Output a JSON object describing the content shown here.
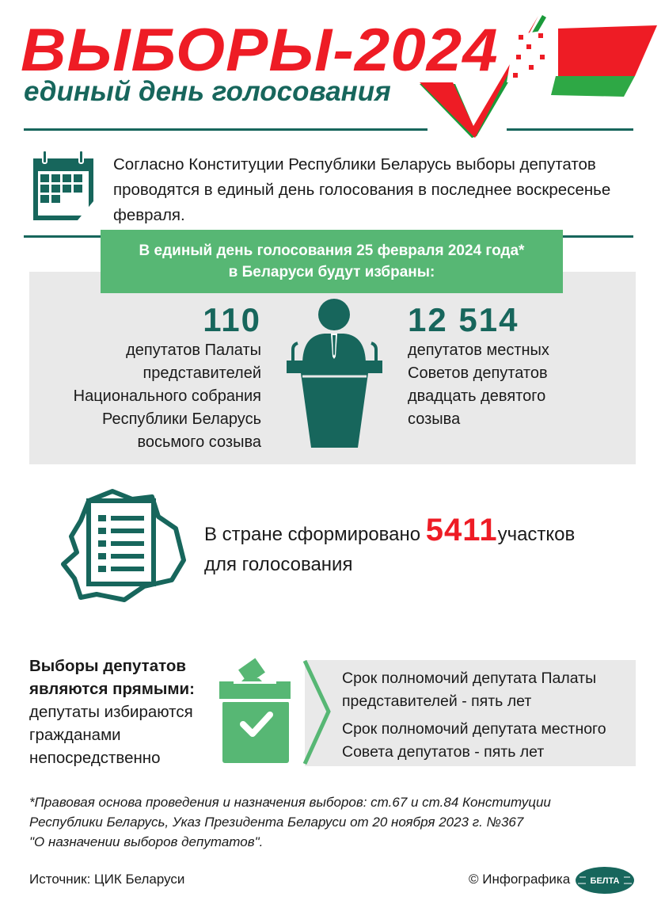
{
  "header": {
    "title": "ВЫБОРЫ-2024",
    "subtitle": "единый день голосования"
  },
  "intro": {
    "icon": "calendar-icon",
    "text": "Согласно Конституции Республики Беларусь выборы депутатов проводятся в единый день голосования в последнее воскресенье февраля."
  },
  "banner": {
    "line1": "В единый день голосования 25 февраля 2024 года*",
    "line2": "в Беларуси будут избраны:"
  },
  "elected": {
    "left": {
      "number": "110",
      "lines": [
        "депутатов Палаты",
        "представителей",
        "Национального собрания",
        "Республики Беларусь",
        "восьмого созыва"
      ]
    },
    "right": {
      "number": "12 514",
      "lines": [
        "депутатов местных",
        "Советов депутатов",
        "двадцать девятого",
        "созыва"
      ]
    },
    "icon": "speaker-podium-icon"
  },
  "stations": {
    "prefix": "В стране сформировано ",
    "number": "5411",
    "suffix": "участков",
    "line2": "для голосования",
    "icon": "map-document-icon"
  },
  "direct": {
    "bold1": "Выборы депутатов",
    "bold2": "являются прямыми:",
    "lines": [
      "депутаты избираются",
      "гражданами",
      "непосредственно"
    ],
    "icon": "ballot-box-icon"
  },
  "terms": [
    {
      "line1": "Срок полномочий депутата Палаты",
      "line2": "представителей - пять лет"
    },
    {
      "line1": "Срок полномочий депутата местного",
      "line2": "Совета депутатов - пять лет"
    }
  ],
  "footnote": {
    "lines": [
      "*Правовая основа проведения и назначения выборов: ст.67 и ст.84 Конституции",
      "Республики Беларусь, Указ Президента Беларуси от 20 ноября 2023 г. №367",
      "\"О назначении выборов депутатов\"."
    ]
  },
  "footer": {
    "source": "Источник: ЦИК Беларуси",
    "credit": "© Инфографика",
    "logo": "БЕЛТА"
  },
  "colors": {
    "red": "#ee1c25",
    "teal": "#17665c",
    "green": "#57b774",
    "gray": "#e9e9e9"
  }
}
